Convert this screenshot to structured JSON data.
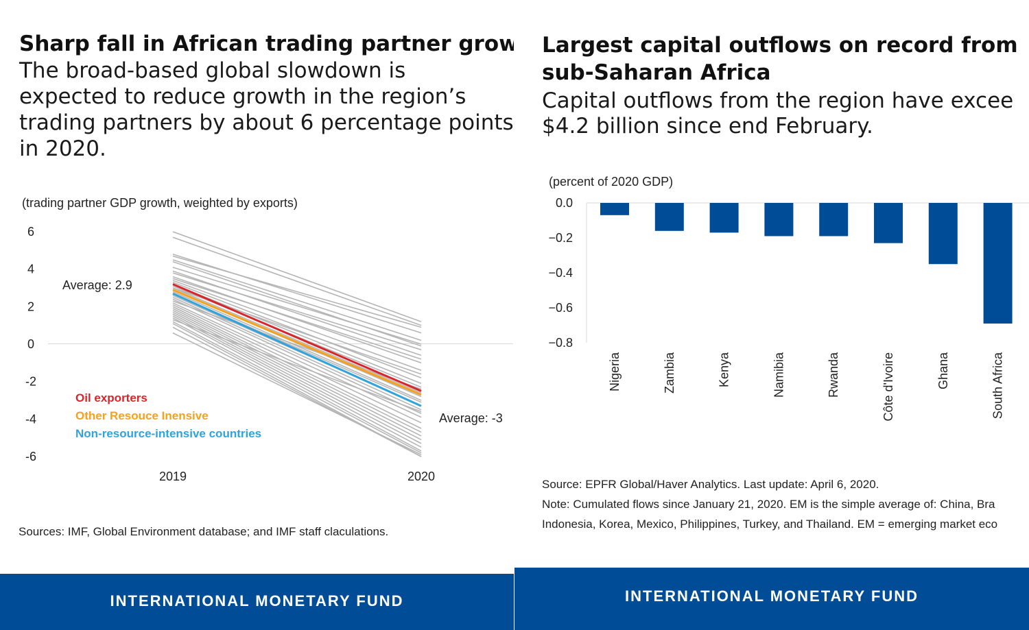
{
  "left": {
    "title": "Sharp fall in African trading partner growth",
    "subtitle_lines": [
      "The broad-based global slowdown is",
      "expected to reduce growth in the region’s",
      "trading partners by about 6 percentage points",
      "in 2020."
    ],
    "unit_label": "(trading partner GDP growth, weighted by exports)",
    "annotations": {
      "avg_2019": "Average: 2.9",
      "avg_2020": "Average: -3"
    },
    "source": "Sources: IMF, Global Environment database; and IMF staff claculations.",
    "footer": "INTERNATIONAL MONETARY FUND"
  },
  "right": {
    "title_lines": [
      "Largest capital outflows on record from",
      "sub-Saharan Africa"
    ],
    "subtitle_lines": [
      "Capital outflows from the region have excee",
      "$4.2 billion since end February."
    ],
    "unit_label": "(percent of 2020 GDP)",
    "source_lines": [
      "Source: EPFR Global/Haver Analytics. Last update: April 6, 2020.",
      "Note: Cumulated flows since January 21, 2020. EM is the simple average of: China, Bra",
      "Indonesia, Korea, Mexico, Philippines, Turkey, and Thailand. EM = emerging market eco"
    ],
    "footer": "INTERNATIONAL MONETARY FUND"
  },
  "chart_data": [
    {
      "type": "line",
      "x": [
        "2019",
        "2020"
      ],
      "ylim": [
        -6,
        6
      ],
      "yticks": [
        6,
        4,
        2,
        0,
        -2,
        -4,
        -6
      ],
      "grid": false,
      "legend_position": "bottom-left",
      "highlight_series": [
        {
          "name": "Oil exporters",
          "values": [
            3.2,
            -2.5
          ],
          "color": "#d9252a"
        },
        {
          "name": "Other Resouce Inensive",
          "values": [
            2.9,
            -2.7
          ],
          "color": "#f5a11c"
        },
        {
          "name": "Non-resource-intensive countries",
          "values": [
            2.7,
            -3.3
          ],
          "color": "#2ea3dd"
        }
      ],
      "background_color": "#b5b5b5",
      "background_series": [
        [
          6.0,
          1.2
        ],
        [
          5.7,
          1.0
        ],
        [
          4.8,
          0.6
        ],
        [
          4.7,
          0.9
        ],
        [
          4.5,
          0.2
        ],
        [
          4.4,
          -0.1
        ],
        [
          4.1,
          0.0
        ],
        [
          3.9,
          -0.6
        ],
        [
          3.8,
          -0.3
        ],
        [
          3.6,
          -1.0
        ],
        [
          3.5,
          -0.8
        ],
        [
          3.4,
          -1.4
        ],
        [
          3.3,
          -1.8
        ],
        [
          3.2,
          -2.1
        ],
        [
          3.1,
          -2.3
        ],
        [
          3.0,
          -2.6
        ],
        [
          2.9,
          -2.8
        ],
        [
          2.8,
          -3.0
        ],
        [
          2.7,
          -3.1
        ],
        [
          2.6,
          -3.3
        ],
        [
          2.5,
          -3.5
        ],
        [
          2.4,
          -3.7
        ],
        [
          2.2,
          -3.9
        ],
        [
          2.1,
          -4.2
        ],
        [
          2.0,
          -4.5
        ],
        [
          1.9,
          -4.7
        ],
        [
          1.8,
          -4.9
        ],
        [
          1.7,
          -5.1
        ],
        [
          1.6,
          -5.3
        ],
        [
          1.5,
          -5.5
        ],
        [
          1.4,
          -5.7
        ],
        [
          1.2,
          -5.8
        ],
        [
          1.1,
          -6.0
        ],
        [
          0.9,
          -6.0
        ],
        [
          0.6,
          -5.9
        ],
        [
          3.0,
          -1.6
        ],
        [
          2.3,
          -2.4
        ],
        [
          1.3,
          -3.6
        ]
      ]
    },
    {
      "type": "bar",
      "categories": [
        "Nigeria",
        "Zambia",
        "Kenya",
        "Namibia",
        "Rwanda",
        "Côte d'Ivoire",
        "Ghana",
        "South Africa"
      ],
      "values": [
        -0.07,
        -0.16,
        -0.17,
        -0.19,
        -0.19,
        -0.23,
        -0.35,
        -0.69
      ],
      "ylim": [
        -0.8,
        0.0
      ],
      "yticks": [
        "0.0",
        "−0.2",
        "−0.4",
        "−0.6",
        "−0.8"
      ],
      "ytick_values": [
        0.0,
        -0.2,
        -0.4,
        -0.6,
        -0.8
      ],
      "grid": false,
      "color": "#004c97"
    }
  ]
}
